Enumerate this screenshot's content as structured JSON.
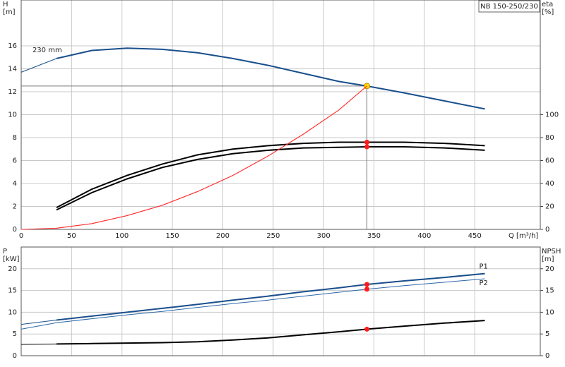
{
  "chart_data": [
    {
      "type": "line",
      "title": "NB 150-250/230",
      "ylabel": [
        "H",
        "[m]"
      ],
      "y2label": [
        "eta",
        "[%]"
      ],
      "xlabel": "Q [m³/h]",
      "x": [
        0,
        35,
        70,
        105,
        140,
        175,
        210,
        245,
        280,
        315,
        343,
        380,
        420,
        460
      ],
      "xlim": [
        0,
        515
      ],
      "xticks": [
        0,
        50,
        100,
        150,
        200,
        250,
        300,
        350,
        400,
        450
      ],
      "ylim": [
        0,
        20
      ],
      "yticks": [
        0,
        2,
        4,
        6,
        8,
        10,
        12,
        14,
        16
      ],
      "y2lim": [
        0,
        200
      ],
      "y2ticks": [
        0,
        20,
        40,
        60,
        80,
        100
      ],
      "qmin": 35,
      "grid": true,
      "duty_point": {
        "x": 343,
        "y": 12.5
      },
      "series": [
        {
          "name": "230 mm",
          "color": "#1a4f8c",
          "values": [
            13.7,
            14.9,
            15.6,
            15.8,
            15.7,
            15.4,
            14.9,
            14.3,
            13.6,
            12.9,
            12.5,
            11.9,
            11.2,
            10.5
          ]
        },
        {
          "color": "#000000",
          "axis": "y2",
          "values": [
            null,
            19,
            35,
            47,
            57,
            65,
            70,
            73,
            75,
            76,
            76,
            76,
            75,
            73
          ]
        },
        {
          "color": "#000000",
          "axis": "y2",
          "values": [
            null,
            17,
            32,
            44,
            54,
            61,
            66,
            69,
            71,
            71.5,
            72,
            72,
            71,
            69
          ]
        },
        {
          "color": "#ff3030",
          "values": [
            0,
            0.1,
            0.5,
            1.2,
            2.1,
            3.3,
            4.7,
            6.4,
            8.3,
            10.4,
            12.5,
            null,
            null,
            null
          ]
        }
      ]
    },
    {
      "type": "line",
      "ylabel": [
        "P",
        "[kW]"
      ],
      "y2label": [
        "NPSH",
        "[m]"
      ],
      "x": [
        0,
        35,
        70,
        105,
        140,
        175,
        210,
        245,
        280,
        315,
        343,
        380,
        420,
        460
      ],
      "xlim": [
        0,
        515
      ],
      "xticks": [
        0,
        50,
        100,
        150,
        200,
        250,
        300,
        350,
        400,
        450
      ],
      "ylim": [
        0,
        25
      ],
      "yticks": [
        0,
        5,
        10,
        15,
        20
      ],
      "y2lim": [
        0,
        25
      ],
      "y2ticks": [
        0,
        5,
        10,
        15,
        20
      ],
      "qmin": 35,
      "grid": true,
      "duty_point": {
        "x": 343
      },
      "series": [
        {
          "name": "P1",
          "color": "#1a4f8c",
          "values": [
            7.2,
            8.2,
            9.1,
            10.0,
            10.9,
            11.8,
            12.8,
            13.7,
            14.7,
            15.6,
            16.4,
            17.2,
            18.0,
            18.9
          ]
        },
        {
          "name": "P2",
          "color": "#2a66a8",
          "thin": true,
          "values": [
            6.1,
            7.6,
            8.5,
            9.4,
            10.2,
            11.1,
            12.0,
            12.8,
            13.7,
            14.6,
            15.3,
            16.1,
            16.9,
            17.7
          ]
        },
        {
          "color": "#000000",
          "axis": "y2",
          "values": [
            2.6,
            2.7,
            2.8,
            2.9,
            3.0,
            3.2,
            3.6,
            4.1,
            4.8,
            5.5,
            6.1,
            6.8,
            7.5,
            8.1
          ]
        }
      ]
    }
  ]
}
